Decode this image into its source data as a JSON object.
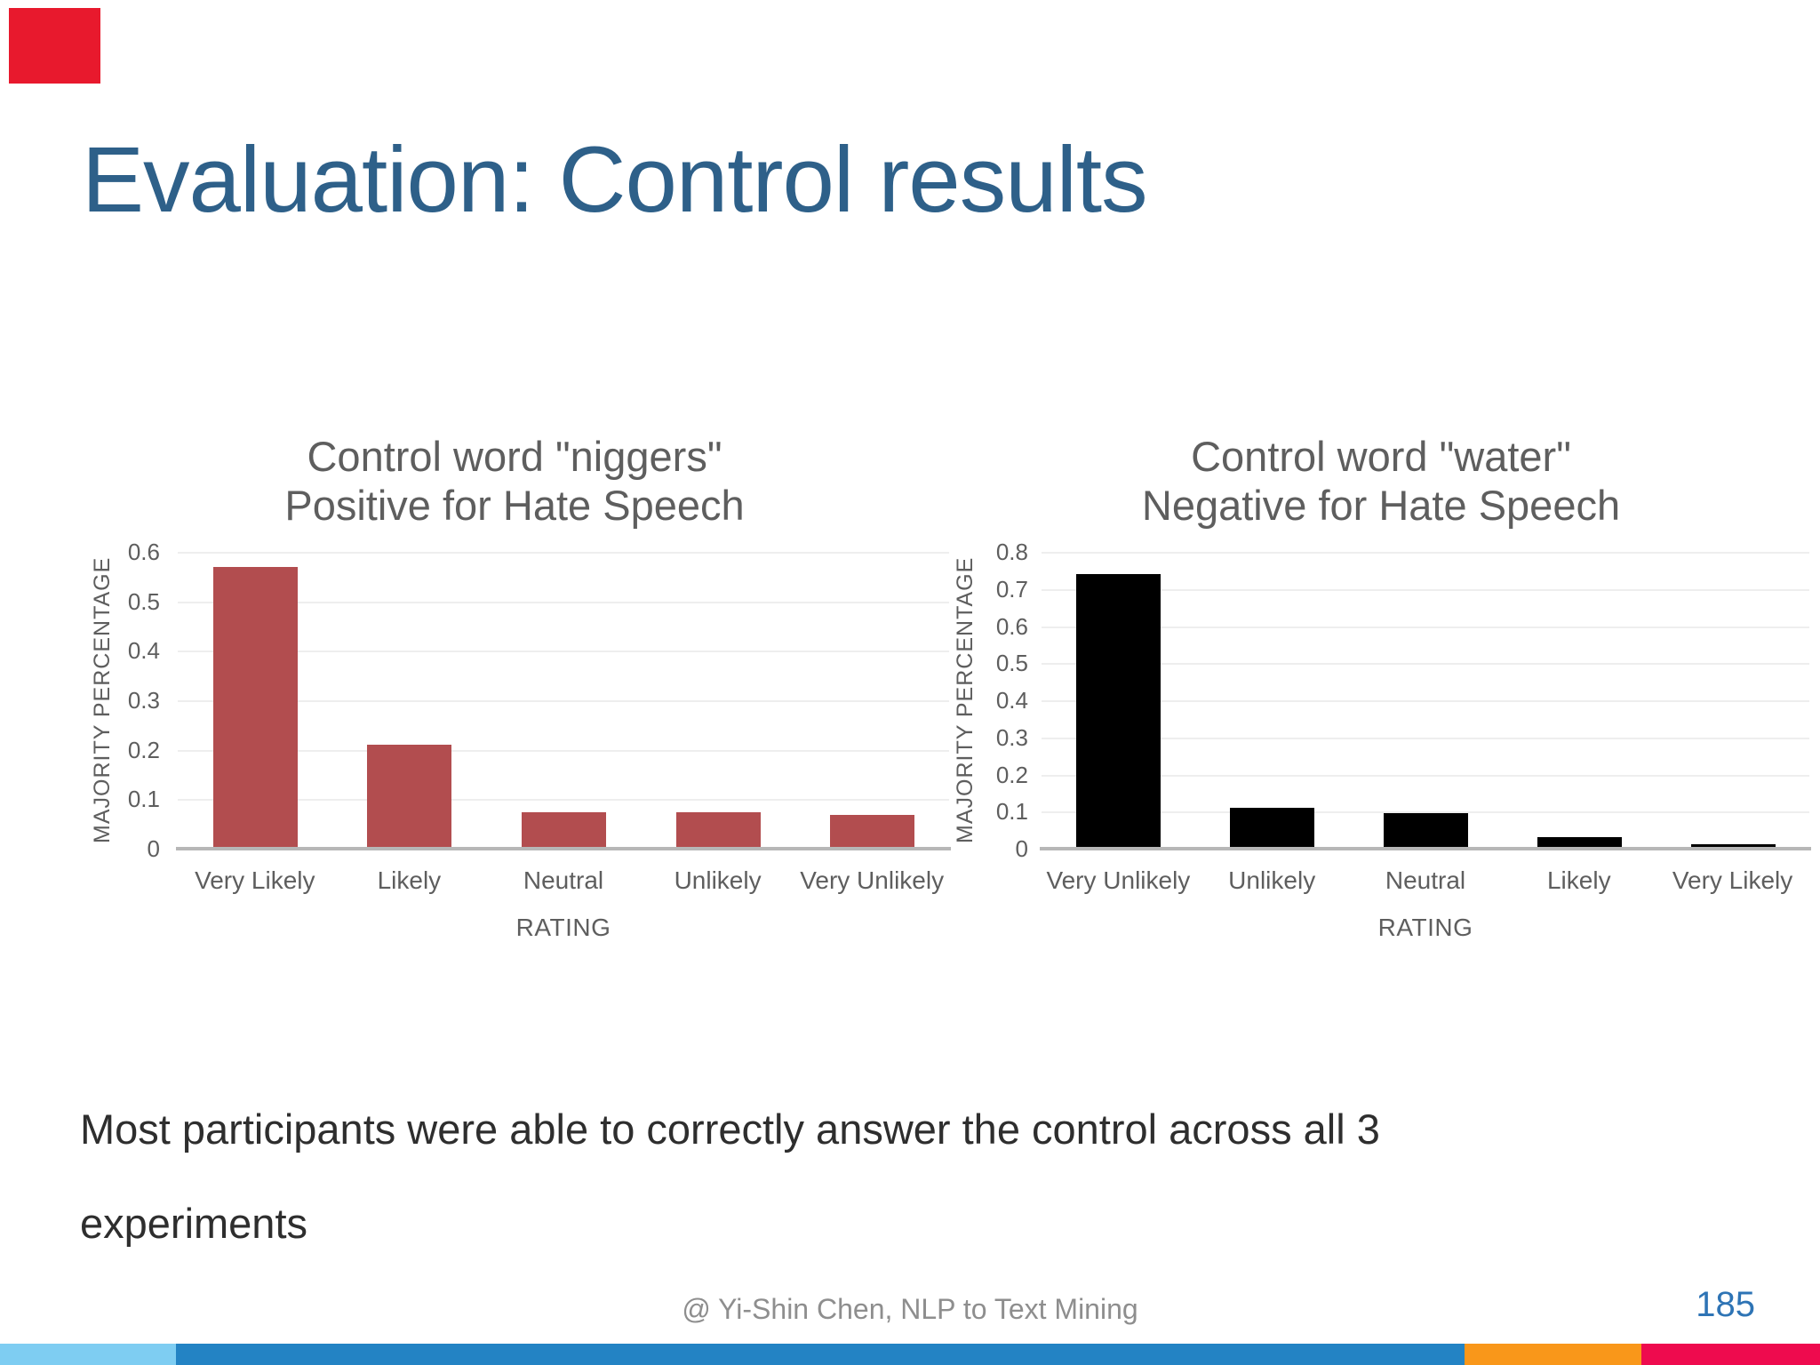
{
  "slide": {
    "title": "Evaluation: Control results",
    "body_text": "Most participants were able to correctly answer the control across all 3 experiments",
    "footer_credit": "@ Yi-Shin Chen, NLP to Text Mining",
    "page_number": "185"
  },
  "colors": {
    "title_blue": "#2e6089",
    "chart_text": "#5e5e5e",
    "gridline": "#eeeeee",
    "axis_line": "#b7b7b7",
    "bar_red": "#b24d4f",
    "bar_black": "#000000",
    "body_text": "#2e2e2e",
    "footer_gray": "#8e8e8e",
    "page_blue": "#2e74b5",
    "marker_red": "#e8192d",
    "accent_light_blue": "#7ecdf2",
    "accent_blue": "#2383c4",
    "accent_orange": "#f9971a",
    "accent_crimson": "#ee0b4e"
  },
  "accent_bar_segments": [
    {
      "name": "light-blue",
      "color": "#7ecdf2"
    },
    {
      "name": "blue",
      "color": "#2383c4"
    },
    {
      "name": "orange",
      "color": "#f9971a"
    },
    {
      "name": "crimson",
      "color": "#ee0b4e"
    }
  ],
  "chart_data": [
    {
      "type": "bar",
      "title_lines": [
        "Control word \"niggers\"",
        "Positive for Hate Speech"
      ],
      "categories": [
        "Very Likely",
        "Likely",
        "Neutral",
        "Unlikely",
        "Very Unlikely"
      ],
      "values": [
        0.57,
        0.21,
        0.073,
        0.074,
        0.068
      ],
      "xlabel": "RATING",
      "ylabel": "MAJORITY PERCENTAGE",
      "ylim": [
        0,
        0.6
      ],
      "yticks": [
        "0.6",
        "0.5",
        "0.4",
        "0.3",
        "0.2",
        "0.1",
        "0"
      ],
      "grid": true,
      "legend": "none",
      "bar_color": "#b24d4f"
    },
    {
      "type": "bar",
      "title_lines": [
        "Control word \"water\"",
        "Negative for Hate Speech"
      ],
      "categories": [
        "Very Unlikely",
        "Unlikely",
        "Neutral",
        "Likely",
        "Very Likely"
      ],
      "values": [
        0.74,
        0.11,
        0.097,
        0.03,
        0.013
      ],
      "xlabel": "RATING",
      "ylabel": "MAJORITY PERCENTAGE",
      "ylim": [
        0,
        0.8
      ],
      "yticks": [
        "0.8",
        "0.7",
        "0.6",
        "0.5",
        "0.4",
        "0.3",
        "0.2",
        "0.1",
        "0"
      ],
      "grid": true,
      "legend": "none",
      "bar_color": "#000000"
    }
  ]
}
